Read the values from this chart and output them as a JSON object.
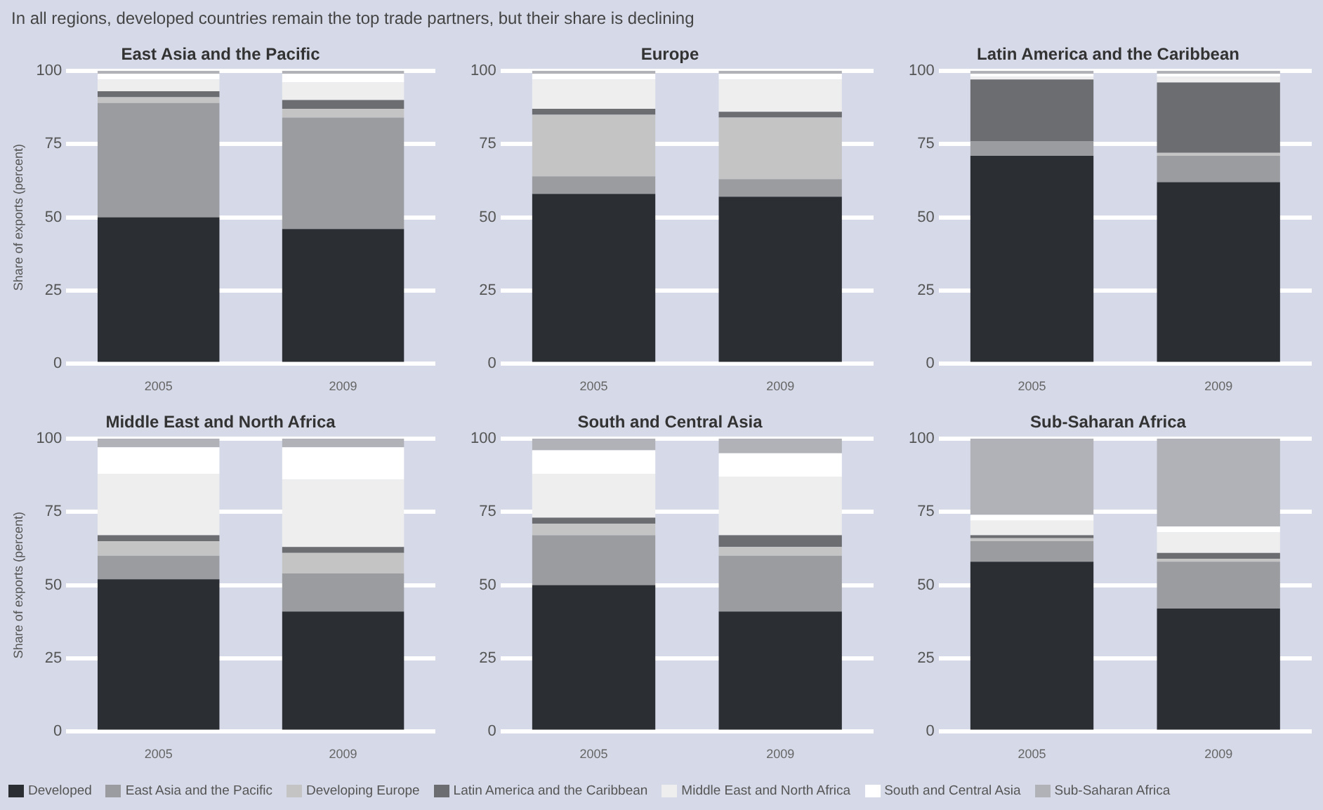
{
  "chart_data": [
    {
      "type": "bar",
      "title": "East Asia and the Pacific",
      "annotations": [
        "In all regions, developed countries remain the top trade partners, but their share is declining"
      ],
      "ylabel": "Share of exports (percent)",
      "categories": [
        "2005",
        "2009"
      ],
      "stacked": true,
      "ylim": [
        0,
        100
      ],
      "yticks": [
        0,
        25,
        50,
        75,
        100
      ],
      "grid": "y",
      "legend": "bottom",
      "series": [
        {
          "name": "Developed",
          "color": "#2b2e33",
          "values": [
            50,
            46
          ]
        },
        {
          "name": "East Asia and the Pacific",
          "color": "#9a9ca0",
          "values": [
            39,
            38
          ]
        },
        {
          "name": "Developing Europe",
          "color": "#c4c4c4",
          "values": [
            2,
            3
          ]
        },
        {
          "name": "Latin America and the Caribbean",
          "color": "#6b6d71",
          "values": [
            2,
            3
          ]
        },
        {
          "name": "Middle East and North Africa",
          "color": "#eeeeee",
          "values": [
            4,
            6
          ]
        },
        {
          "name": "South and Central Asia",
          "color": "#ffffff",
          "values": [
            2,
            3
          ]
        },
        {
          "name": "Sub-Saharan Africa",
          "color": "#b0b2b8",
          "values": [
            1,
            1
          ]
        }
      ]
    },
    {
      "type": "bar",
      "title": "Europe",
      "categories": [
        "2005",
        "2009"
      ],
      "stacked": true,
      "ylim": [
        0,
        100
      ],
      "yticks": [
        0,
        25,
        50,
        75,
        100
      ],
      "grid": "y",
      "series": [
        {
          "color": "#2b2e33",
          "values": [
            58,
            57
          ]
        },
        {
          "color": "#9a9ca0",
          "values": [
            6,
            6
          ]
        },
        {
          "color": "#c4c4c4",
          "values": [
            21,
            21
          ]
        },
        {
          "color": "#6b6d71",
          "values": [
            2,
            2
          ]
        },
        {
          "color": "#eeeeee",
          "values": [
            10,
            11
          ]
        },
        {
          "color": "#ffffff",
          "values": [
            2,
            2
          ]
        },
        {
          "color": "#b0b2b8",
          "values": [
            1,
            1
          ]
        }
      ]
    },
    {
      "type": "bar",
      "title": "Latin America and the Caribbean",
      "categories": [
        "2005",
        "2009"
      ],
      "stacked": true,
      "ylim": [
        0,
        100
      ],
      "yticks": [
        0,
        25,
        50,
        75,
        100
      ],
      "grid": "y",
      "series": [
        {
          "color": "#2b2e33",
          "values": [
            71,
            62
          ]
        },
        {
          "color": "#9a9ca0",
          "values": [
            5,
            9
          ]
        },
        {
          "color": "#c4c4c4",
          "values": [
            0,
            1
          ]
        },
        {
          "color": "#6b6d71",
          "values": [
            21,
            24
          ]
        },
        {
          "color": "#eeeeee",
          "values": [
            1,
            2
          ]
        },
        {
          "color": "#ffffff",
          "values": [
            1,
            1
          ]
        },
        {
          "color": "#b0b2b8",
          "values": [
            1,
            1
          ]
        }
      ]
    },
    {
      "type": "bar",
      "title": "Middle East and North Africa",
      "ylabel": "Share of exports (percent)",
      "categories": [
        "2005",
        "2009"
      ],
      "stacked": true,
      "ylim": [
        0,
        100
      ],
      "yticks": [
        0,
        25,
        50,
        75,
        100
      ],
      "grid": "y",
      "series": [
        {
          "color": "#2b2e33",
          "values": [
            52,
            41
          ]
        },
        {
          "color": "#9a9ca0",
          "values": [
            8,
            13
          ]
        },
        {
          "color": "#c4c4c4",
          "values": [
            5,
            7
          ]
        },
        {
          "color": "#6b6d71",
          "values": [
            2,
            2
          ]
        },
        {
          "color": "#eeeeee",
          "values": [
            21,
            23
          ]
        },
        {
          "color": "#ffffff",
          "values": [
            9,
            11
          ]
        },
        {
          "color": "#b0b2b8",
          "values": [
            3,
            3
          ]
        }
      ]
    },
    {
      "type": "bar",
      "title": "South and Central Asia",
      "categories": [
        "2005",
        "2009"
      ],
      "stacked": true,
      "ylim": [
        0,
        100
      ],
      "yticks": [
        0,
        25,
        50,
        75,
        100
      ],
      "grid": "y",
      "series": [
        {
          "color": "#2b2e33",
          "values": [
            50,
            41
          ]
        },
        {
          "color": "#9a9ca0",
          "values": [
            17,
            19
          ]
        },
        {
          "color": "#c4c4c4",
          "values": [
            4,
            3
          ]
        },
        {
          "color": "#6b6d71",
          "values": [
            2,
            4
          ]
        },
        {
          "color": "#eeeeee",
          "values": [
            15,
            20
          ]
        },
        {
          "color": "#ffffff",
          "values": [
            8,
            8
          ]
        },
        {
          "color": "#b0b2b8",
          "values": [
            4,
            5
          ]
        }
      ]
    },
    {
      "type": "bar",
      "title": "Sub-Saharan Africa",
      "categories": [
        "2005",
        "2009"
      ],
      "stacked": true,
      "ylim": [
        0,
        100
      ],
      "yticks": [
        0,
        25,
        50,
        75,
        100
      ],
      "grid": "y",
      "series": [
        {
          "color": "#2b2e33",
          "values": [
            58,
            42
          ]
        },
        {
          "color": "#9a9ca0",
          "values": [
            7,
            16
          ]
        },
        {
          "color": "#c4c4c4",
          "values": [
            1,
            1
          ]
        },
        {
          "color": "#6b6d71",
          "values": [
            1,
            2
          ]
        },
        {
          "color": "#eeeeee",
          "values": [
            5,
            7
          ]
        },
        {
          "color": "#ffffff",
          "values": [
            2,
            2
          ]
        },
        {
          "color": "#b0b2b8",
          "values": [
            26,
            30
          ]
        }
      ]
    }
  ]
}
